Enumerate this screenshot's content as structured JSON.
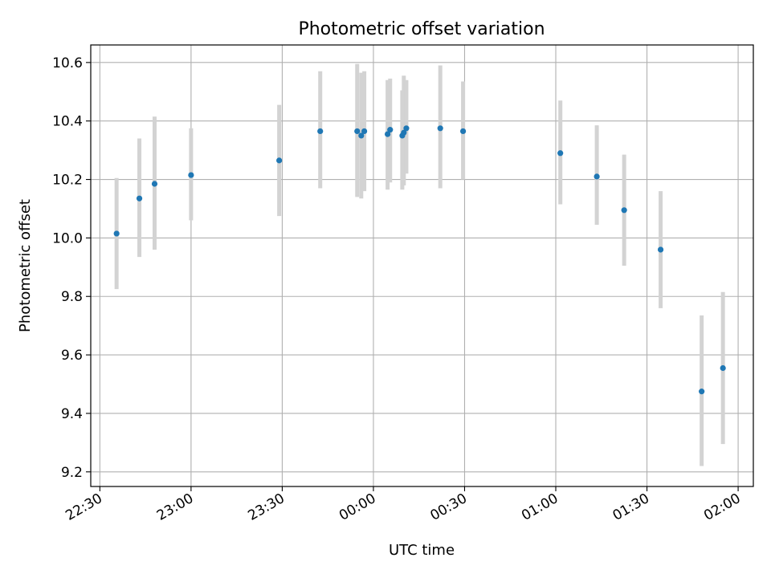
{
  "chart_data": {
    "type": "scatter",
    "title": "Photometric offset variation",
    "xlabel": "UTC time",
    "ylabel": "Photometric offset",
    "x_unit": "UTC time (HH:MM), dates crossing midnight",
    "xlim": [
      "22:27",
      "02:05"
    ],
    "ylim": [
      9.15,
      10.66
    ],
    "grid": true,
    "colors": {
      "points": "#1f77b4",
      "error_bars": "#d3d3d3"
    },
    "x_ticks": [
      "22:30",
      "23:00",
      "23:30",
      "00:00",
      "00:30",
      "01:00",
      "01:30",
      "02:00"
    ],
    "y_ticks": [
      "9.2",
      "9.4",
      "9.6",
      "9.8",
      "10.0",
      "10.2",
      "10.4",
      "10.6"
    ],
    "points": [
      {
        "x": "22:35:30",
        "y": 10.015,
        "yerr_low": 9.825,
        "yerr_high": 10.205
      },
      {
        "x": "22:43:00",
        "y": 10.135,
        "yerr_low": 9.935,
        "yerr_high": 10.34
      },
      {
        "x": "22:48:00",
        "y": 10.185,
        "yerr_low": 9.96,
        "yerr_high": 10.415
      },
      {
        "x": "23:00:00",
        "y": 10.215,
        "yerr_low": 10.06,
        "yerr_high": 10.375
      },
      {
        "x": "23:29:00",
        "y": 10.265,
        "yerr_low": 10.075,
        "yerr_high": 10.455
      },
      {
        "x": "23:42:30",
        "y": 10.365,
        "yerr_low": 10.17,
        "yerr_high": 10.57
      },
      {
        "x": "23:54:40",
        "y": 10.365,
        "yerr_low": 10.14,
        "yerr_high": 10.595
      },
      {
        "x": "23:56:00",
        "y": 10.35,
        "yerr_low": 10.135,
        "yerr_high": 10.565
      },
      {
        "x": "23:57:00",
        "y": 10.365,
        "yerr_low": 10.16,
        "yerr_high": 10.57
      },
      {
        "x": "00:04:40",
        "y": 10.355,
        "yerr_low": 10.165,
        "yerr_high": 10.54
      },
      {
        "x": "00:05:30",
        "y": 10.37,
        "yerr_low": 10.19,
        "yerr_high": 10.545
      },
      {
        "x": "00:09:30",
        "y": 10.35,
        "yerr_low": 10.165,
        "yerr_high": 10.505
      },
      {
        "x": "00:10:00",
        "y": 10.36,
        "yerr_low": 10.18,
        "yerr_high": 10.555
      },
      {
        "x": "00:10:50",
        "y": 10.375,
        "yerr_low": 10.22,
        "yerr_high": 10.54
      },
      {
        "x": "00:22:00",
        "y": 10.375,
        "yerr_low": 10.17,
        "yerr_high": 10.59
      },
      {
        "x": "00:29:30",
        "y": 10.365,
        "yerr_low": 10.2,
        "yerr_high": 10.535
      },
      {
        "x": "01:01:30",
        "y": 10.29,
        "yerr_low": 10.115,
        "yerr_high": 10.47
      },
      {
        "x": "01:13:30",
        "y": 10.21,
        "yerr_low": 10.045,
        "yerr_high": 10.385
      },
      {
        "x": "01:22:30",
        "y": 10.095,
        "yerr_low": 9.905,
        "yerr_high": 10.285
      },
      {
        "x": "01:34:30",
        "y": 9.96,
        "yerr_low": 9.76,
        "yerr_high": 10.16
      },
      {
        "x": "01:48:00",
        "y": 9.475,
        "yerr_low": 9.22,
        "yerr_high": 9.735
      },
      {
        "x": "01:55:00",
        "y": 9.555,
        "yerr_low": 9.295,
        "yerr_high": 9.815
      }
    ]
  }
}
